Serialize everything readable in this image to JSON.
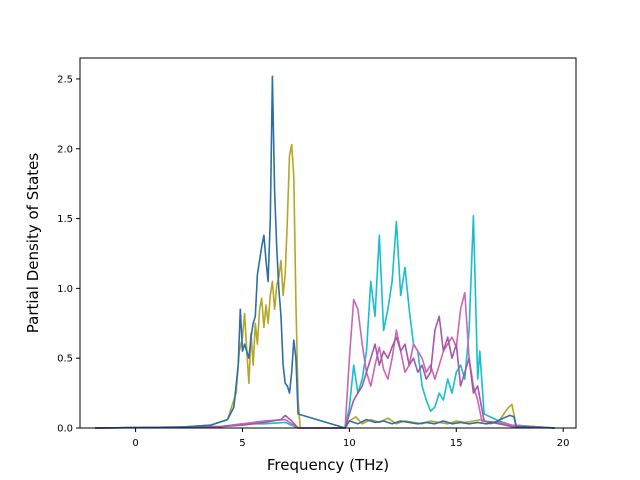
{
  "chart_data": {
    "type": "line",
    "title": "",
    "xlabel": "Frequency (THz)",
    "ylabel": "Partial Density of States",
    "xlim": [
      -2.6,
      20.6
    ],
    "ylim": [
      0,
      2.65
    ],
    "xticks": [
      0,
      5,
      10,
      15,
      20
    ],
    "yticks": [
      0.0,
      0.5,
      1.0,
      1.5,
      2.0,
      2.5
    ],
    "xtick_labels": [
      "0",
      "5",
      "10",
      "15",
      "20"
    ],
    "ytick_labels": [
      "0.0",
      "0.5",
      "1.0",
      "1.5",
      "2.0",
      "2.5"
    ],
    "grid": false,
    "legend": "none",
    "series": [
      {
        "color": "#b5a626",
        "x": [
          -1.9,
          2.0,
          3.5,
          4.3,
          4.7,
          4.85,
          5.0,
          5.1,
          5.2,
          5.3,
          5.4,
          5.5,
          5.6,
          5.7,
          5.8,
          5.9,
          6.0,
          6.1,
          6.2,
          6.3,
          6.4,
          6.5,
          6.6,
          6.7,
          6.8,
          6.9,
          7.0,
          7.1,
          7.2,
          7.3,
          7.4,
          7.5,
          7.6,
          7.7,
          9.8,
          10.0,
          10.3,
          10.6,
          11.0,
          11.4,
          11.8,
          12.2,
          12.6,
          13.0,
          13.4,
          13.8,
          14.2,
          14.6,
          15.0,
          15.4,
          15.8,
          16.2,
          16.6,
          17.0,
          17.4,
          17.6,
          17.8,
          19.6
        ],
        "values": [
          0,
          0.005,
          0.02,
          0.06,
          0.25,
          0.55,
          0.65,
          0.82,
          0.55,
          0.32,
          0.68,
          0.45,
          0.75,
          0.6,
          0.85,
          0.93,
          0.72,
          0.88,
          0.75,
          0.95,
          1.05,
          0.85,
          1.02,
          1.08,
          1.2,
          0.95,
          1.1,
          1.5,
          1.95,
          2.03,
          1.8,
          0.9,
          0.2,
          0,
          0,
          0.05,
          0.08,
          0.03,
          0.06,
          0.04,
          0.07,
          0.03,
          0.05,
          0.04,
          0.03,
          0.05,
          0.04,
          0.03,
          0.05,
          0.04,
          0.05,
          0.06,
          0.03,
          0.05,
          0.14,
          0.17,
          0.02,
          0
        ]
      },
      {
        "color": "#17becf",
        "x": [
          -1.9,
          4.0,
          5.0,
          6.0,
          7.0,
          7.6,
          9.8,
          10.0,
          10.2,
          10.4,
          10.6,
          10.8,
          11.0,
          11.2,
          11.4,
          11.6,
          11.8,
          12.0,
          12.2,
          12.4,
          12.6,
          12.8,
          13.0,
          13.2,
          13.4,
          13.6,
          13.8,
          14.0,
          14.2,
          14.4,
          14.6,
          14.8,
          15.0,
          15.2,
          15.4,
          15.6,
          15.8,
          16.0,
          16.1,
          16.3,
          17.0,
          17.6,
          19.6
        ],
        "values": [
          0,
          0.01,
          0.03,
          0.03,
          0.04,
          0,
          0,
          0.15,
          0.45,
          0.25,
          0.35,
          0.55,
          1.05,
          0.8,
          1.38,
          0.7,
          0.85,
          1.05,
          1.48,
          0.95,
          1.15,
          0.85,
          0.6,
          0.55,
          0.3,
          0.2,
          0.12,
          0.15,
          0.25,
          0.2,
          0.35,
          0.25,
          0.4,
          0.45,
          0.35,
          0.7,
          1.52,
          0.35,
          0.55,
          0.1,
          0.05,
          0.02,
          0
        ]
      },
      {
        "color": "#cc66b3",
        "x": [
          -1.9,
          4.0,
          5.0,
          6.0,
          7.0,
          7.6,
          9.8,
          10.0,
          10.2,
          10.4,
          10.6,
          10.8,
          11.0,
          11.2,
          11.4,
          11.6,
          11.8,
          12.0,
          12.2,
          12.4,
          12.6,
          12.8,
          13.0,
          13.2,
          13.4,
          13.6,
          13.8,
          14.0,
          14.2,
          14.4,
          14.6,
          14.8,
          15.0,
          15.2,
          15.4,
          15.6,
          15.8,
          16.0,
          16.2,
          17.0,
          17.6,
          19.6
        ],
        "values": [
          0,
          0.01,
          0.03,
          0.05,
          0.06,
          0,
          0,
          0.5,
          0.92,
          0.85,
          0.6,
          0.4,
          0.3,
          0.45,
          0.58,
          0.42,
          0.35,
          0.5,
          0.7,
          0.55,
          0.4,
          0.45,
          0.6,
          0.55,
          0.5,
          0.4,
          0.45,
          0.35,
          0.45,
          0.55,
          0.6,
          0.65,
          0.58,
          0.85,
          0.97,
          0.5,
          0.3,
          0.2,
          0.05,
          0.04,
          0.02,
          0
        ]
      },
      {
        "color": "#a358a8",
        "x": [
          -1.9,
          4.0,
          5.0,
          6.0,
          6.8,
          7.0,
          7.3,
          7.6,
          9.8,
          10.0,
          10.2,
          10.4,
          10.6,
          10.8,
          11.0,
          11.2,
          11.4,
          11.6,
          11.8,
          12.0,
          12.2,
          12.4,
          12.6,
          12.8,
          13.0,
          13.2,
          13.4,
          13.6,
          13.8,
          14.0,
          14.2,
          14.4,
          14.6,
          14.8,
          15.0,
          15.2,
          15.4,
          15.6,
          15.8,
          16.0,
          16.3,
          17.0,
          17.6,
          19.6
        ],
        "values": [
          0,
          0.01,
          0.02,
          0.04,
          0.06,
          0.09,
          0.05,
          0,
          0,
          0.1,
          0.2,
          0.25,
          0.3,
          0.4,
          0.5,
          0.6,
          0.45,
          0.55,
          0.5,
          0.58,
          0.65,
          0.55,
          0.6,
          0.45,
          0.5,
          0.4,
          0.45,
          0.35,
          0.4,
          0.7,
          0.8,
          0.55,
          0.65,
          0.5,
          0.6,
          0.3,
          0.4,
          0.5,
          0.25,
          0.3,
          0.05,
          0.03,
          0.01,
          0
        ]
      },
      {
        "color": "#2c6fa5",
        "x": [
          -1.9,
          2.0,
          3.5,
          4.3,
          4.6,
          4.8,
          4.9,
          5.0,
          5.1,
          5.2,
          5.3,
          5.4,
          5.5,
          5.6,
          5.7,
          5.8,
          5.9,
          6.0,
          6.1,
          6.2,
          6.3,
          6.4,
          6.5,
          6.6,
          6.7,
          6.8,
          6.9,
          7.0,
          7.1,
          7.2,
          7.3,
          7.4,
          7.5,
          7.6,
          9.8,
          10.0,
          10.4,
          10.8,
          11.2,
          11.6,
          12.0,
          12.4,
          12.8,
          13.2,
          13.6,
          14.0,
          14.4,
          14.8,
          15.2,
          15.6,
          16.0,
          16.4,
          16.8,
          17.2,
          17.5,
          17.7,
          17.8,
          19.6
        ],
        "values": [
          0,
          0.005,
          0.02,
          0.06,
          0.15,
          0.45,
          0.85,
          0.55,
          0.6,
          0.55,
          0.5,
          0.65,
          0.75,
          0.8,
          1.1,
          1.2,
          1.3,
          1.38,
          1.2,
          1.05,
          1.5,
          2.52,
          1.7,
          1.3,
          1.0,
          0.8,
          0.45,
          0.32,
          0.3,
          0.25,
          0.4,
          0.63,
          0.5,
          0.1,
          0,
          0.05,
          0.03,
          0.06,
          0.04,
          0.05,
          0.03,
          0.05,
          0.04,
          0.03,
          0.04,
          0.03,
          0.05,
          0.03,
          0.04,
          0.03,
          0.04,
          0.03,
          0.04,
          0.07,
          0.09,
          0.08,
          0.01,
          0
        ]
      }
    ]
  }
}
